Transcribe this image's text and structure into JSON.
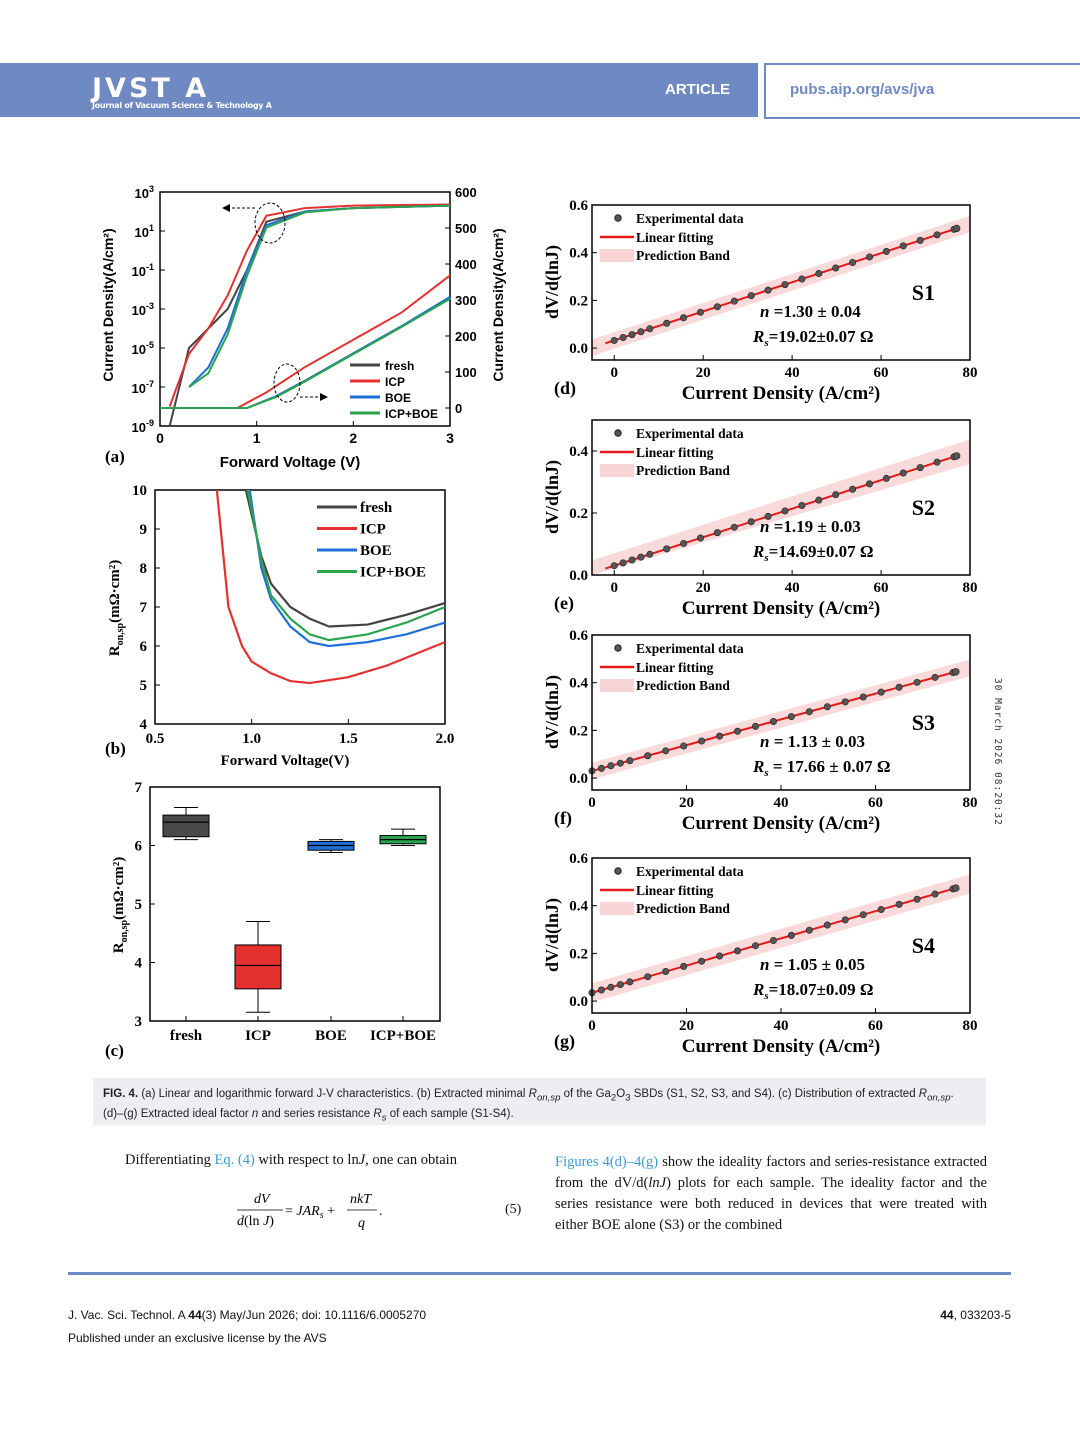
{
  "header": {
    "journal": "JVST A",
    "journal_sub": "Journal of Vacuum Science & Technology A",
    "section": "ARTICLE",
    "url": "pubs.aip.org/avs/jva"
  },
  "stamp": "30 March 2026 08:20:32",
  "panel_a": {
    "label": "(a)",
    "xlabel": "Forward Voltage (V)",
    "ylabel_left": "Current Density(A/cm²)",
    "ylabel_right": "Current Density(A/cm²)",
    "x_ticks": [
      "0",
      "1",
      "2",
      "3"
    ],
    "y_left_exp": [
      "3",
      "1",
      "-1",
      "-3",
      "-5",
      "-7",
      "-9"
    ],
    "y_right_ticks": [
      "600",
      "500",
      "400",
      "300",
      "200",
      "100",
      "0"
    ],
    "legend": [
      "fresh",
      "ICP",
      "BOE",
      "ICP+BOE"
    ]
  },
  "panel_b": {
    "label": "(b)",
    "xlabel": "Forward Voltage(V)",
    "ylabel": "R",
    "ylabel_sub": "on,sp",
    "ylabel_unit": "(mΩ·cm²)",
    "x_ticks": [
      "0.5",
      "1.0",
      "1.5",
      "2.0"
    ],
    "y_ticks": [
      "10",
      "9",
      "8",
      "7",
      "6",
      "5",
      "4"
    ],
    "legend": [
      "fresh",
      "ICP",
      "BOE",
      "ICP+BOE"
    ]
  },
  "panel_c": {
    "label": "(c)",
    "ylabel": "R",
    "ylabel_sub": "on,sp",
    "ylabel_unit": "(mΩ·cm²)",
    "categories": [
      "fresh",
      "ICP",
      "BOE",
      "ICP+BOE"
    ],
    "y_ticks": [
      "7",
      "6",
      "5",
      "4",
      "3"
    ]
  },
  "chart_data": [
    {
      "type": "line",
      "title": "(a) Linear and logarithmic forward J-V",
      "xlabel": "Forward Voltage (V)",
      "ylabel": "Current Density (A/cm2)",
      "xlim": [
        0,
        3
      ],
      "series": [
        {
          "name": "fresh",
          "color": "#444444",
          "x": [
            0.1,
            0.3,
            0.5,
            0.7,
            0.9,
            1.1,
            1.5,
            2.0,
            3.0
          ],
          "y_log": [
            1e-09,
            1e-05,
            0.0001,
            0.001,
            0.1,
            30,
            100,
            150,
            200
          ]
        },
        {
          "name": "ICP",
          "color": "#e53030",
          "x": [
            0.1,
            0.3,
            0.5,
            0.7,
            0.9,
            1.1,
            1.5,
            2.0,
            3.0
          ],
          "y_log": [
            1e-08,
            5e-06,
            0.0001,
            0.005,
            1,
            60,
            150,
            200,
            230
          ]
        },
        {
          "name": "BOE",
          "color": "#1f6fd8",
          "x": [
            0.3,
            0.5,
            0.7,
            0.9,
            1.1,
            1.5,
            2.0,
            3.0
          ],
          "y_log": [
            1e-07,
            1e-06,
            0.0001,
            0.1,
            20,
            100,
            150,
            200
          ]
        },
        {
          "name": "ICP+BOE",
          "color": "#2aa44e",
          "x": [
            0.3,
            0.5,
            0.7,
            0.9,
            1.1,
            1.5,
            2.0,
            3.0
          ],
          "y_log": [
            1e-07,
            5e-07,
            5e-05,
            0.05,
            15,
            90,
            150,
            200
          ]
        }
      ],
      "linear_curves": [
        {
          "name": "fresh",
          "x": [
            0.9,
            1.2,
            1.5,
            2.0,
            2.5,
            3.0
          ],
          "y": [
            0,
            30,
            70,
            140,
            210,
            280
          ]
        },
        {
          "name": "ICP",
          "x": [
            0.8,
            1.1,
            1.5,
            2.0,
            2.5,
            3.0
          ],
          "y": [
            0,
            40,
            105,
            175,
            245,
            340
          ]
        },
        {
          "name": "BOE",
          "x": [
            0.9,
            1.2,
            1.5,
            2.0,
            2.5,
            3.0
          ],
          "y": [
            0,
            30,
            70,
            140,
            210,
            285
          ]
        },
        {
          "name": "ICP+BOE",
          "x": [
            0.9,
            1.2,
            1.5,
            2.0,
            2.5,
            3.0
          ],
          "y": [
            0,
            28,
            68,
            138,
            208,
            280
          ]
        }
      ]
    },
    {
      "type": "line",
      "title": "(b) Extracted minimal Ron,sp",
      "xlabel": "Forward Voltage(V)",
      "ylabel": "Ron,sp (mΩ·cm2)",
      "xlim": [
        0.5,
        2.0
      ],
      "ylim": [
        4,
        10
      ],
      "series": [
        {
          "name": "fresh",
          "color": "#444444",
          "x": [
            0.97,
            1.05,
            1.1,
            1.2,
            1.3,
            1.4,
            1.6,
            1.8,
            2.0
          ],
          "y": [
            10,
            8.3,
            7.6,
            7.0,
            6.7,
            6.5,
            6.55,
            6.8,
            7.1
          ]
        },
        {
          "name": "ICP",
          "color": "#e53030",
          "x": [
            0.82,
            0.88,
            0.95,
            1.0,
            1.1,
            1.2,
            1.3,
            1.5,
            1.7,
            1.9,
            2.0
          ],
          "y": [
            10,
            7.0,
            6.0,
            5.6,
            5.3,
            5.1,
            5.05,
            5.2,
            5.5,
            5.9,
            6.1
          ]
        },
        {
          "name": "BOE",
          "color": "#1f6fd8",
          "x": [
            0.99,
            1.05,
            1.1,
            1.2,
            1.3,
            1.4,
            1.6,
            1.8,
            2.0
          ],
          "y": [
            10,
            8.0,
            7.2,
            6.5,
            6.1,
            6.0,
            6.1,
            6.3,
            6.6
          ]
        },
        {
          "name": "ICP+BOE",
          "color": "#2aa44e",
          "x": [
            0.98,
            1.05,
            1.1,
            1.2,
            1.3,
            1.4,
            1.6,
            1.8,
            2.0
          ],
          "y": [
            10,
            8.2,
            7.3,
            6.7,
            6.3,
            6.15,
            6.3,
            6.6,
            7.0
          ]
        }
      ]
    },
    {
      "type": "box",
      "title": "(c) Distribution of extracted Ron,sp",
      "ylabel": "Ron,sp (mΩ·cm2)",
      "ylim": [
        3,
        7
      ],
      "categories": [
        "fresh",
        "ICP",
        "BOE",
        "ICP+BOE"
      ],
      "boxes": [
        {
          "name": "fresh",
          "color": "#4a4a4a",
          "min": 6.1,
          "q1": 6.15,
          "median": 6.4,
          "q3": 6.52,
          "max": 6.65
        },
        {
          "name": "ICP",
          "color": "#e53030",
          "min": 3.15,
          "q1": 3.55,
          "median": 3.95,
          "q3": 4.3,
          "max": 4.7
        },
        {
          "name": "BOE",
          "color": "#1f6fd8",
          "min": 5.88,
          "q1": 5.92,
          "median": 6.0,
          "q3": 6.07,
          "max": 6.1
        },
        {
          "name": "ICP+BOE",
          "color": "#2aa44e",
          "min": 6.0,
          "q1": 6.03,
          "median": 6.1,
          "q3": 6.17,
          "max": 6.28
        }
      ]
    },
    {
      "type": "scatter",
      "title": "(d) S1",
      "panel": "(d)",
      "sample": "S1",
      "xlabel": "Current Density (A/cm²)",
      "ylabel": "dV/d(lnJ)",
      "xlim": [
        -5,
        80
      ],
      "ylim": [
        -0.05,
        0.6
      ],
      "x_ticks": [
        "0",
        "20",
        "40",
        "60",
        "80"
      ],
      "y_ticks": [
        "0.6",
        "0.4",
        "0.2",
        "0.0"
      ],
      "legend": [
        "Experimental data",
        "Linear fitting",
        "Prediction Band"
      ],
      "n_text": "n =1.30 ± 0.04",
      "rs_text": "=19.02±0.07 Ω",
      "slope": 0.0061,
      "intercept": 0.032,
      "xmax": 77,
      "band": 0.035
    },
    {
      "type": "scatter",
      "title": "(e) S2",
      "panel": "(e)",
      "sample": "S2",
      "xlabel": "Current Density (A/cm²)",
      "ylabel": "dV/d(lnJ)",
      "xlim": [
        -5,
        80
      ],
      "ylim": [
        0,
        0.5
      ],
      "x_ticks": [
        "0",
        "20",
        "40",
        "60",
        "80"
      ],
      "y_ticks": [
        "0.4",
        "0.2",
        "0.0"
      ],
      "legend": [
        "Experimental data",
        "Linear fitting",
        "Prediction Band"
      ],
      "n_text": "n =1.19 ± 0.03",
      "rs_text": "=14.69±0.07 Ω",
      "slope": 0.0046,
      "intercept": 0.03,
      "xmax": 77,
      "band": 0.04
    },
    {
      "type": "scatter",
      "title": "(f) S3",
      "panel": "(f)",
      "sample": "S3",
      "xlabel": "Current Density (A/cm²)",
      "ylabel": "dV/d(lnJ)",
      "xlim": [
        0,
        80
      ],
      "ylim": [
        -0.05,
        0.6
      ],
      "x_ticks": [
        "0",
        "20",
        "40",
        "60",
        "80"
      ],
      "y_ticks": [
        "0.6",
        "0.4",
        "0.2",
        "0.0"
      ],
      "legend": [
        "Experimental data",
        "Linear fitting",
        "Prediction Band"
      ],
      "n_text": "n = 1.13 ± 0.03",
      "rs_text": " = 17.66 ± 0.07 Ω",
      "slope": 0.0054,
      "intercept": 0.03,
      "xmax": 77,
      "band": 0.035
    },
    {
      "type": "scatter",
      "title": "(g) S4",
      "panel": "(g)",
      "sample": "S4",
      "xlabel": "Current Density (A/cm²)",
      "ylabel": "dV/d(lnJ)",
      "xlim": [
        0,
        80
      ],
      "ylim": [
        -0.05,
        0.6
      ],
      "x_ticks": [
        "0",
        "20",
        "40",
        "60",
        "80"
      ],
      "y_ticks": [
        "0.6",
        "0.4",
        "0.2",
        "0.0"
      ],
      "legend": [
        "Experimental data",
        "Linear fitting",
        "Prediction Band"
      ],
      "n_text": "n = 1.05 ± 0.05",
      "rs_text": "=18.07±0.09 Ω",
      "slope": 0.0057,
      "intercept": 0.035,
      "xmax": 77,
      "band": 0.04
    }
  ],
  "caption": {
    "fig": "FIG. 4.",
    "text1": " (a) Linear and logarithmic forward J-V characteristics. (b) Extracted minimal ",
    "r1": "R",
    "r1sub": "on,sp",
    "text2": " of the Ga",
    "ga_sub1": "2",
    "text3": "O",
    "o_sub": "3",
    "text4": " SBDs (S1, S2, S3, and S4). (c) Distribution of extracted ",
    "r2": "R",
    "r2sub": "on,sp",
    "text5": ". (d)–(g) Extracted ideal factor ",
    "n": "n",
    "text6": " and series resistance ",
    "rs": "R",
    "rs_sub": "s",
    "text7": " of each sample (S1-S4)."
  },
  "body": {
    "left_p1": "Differentiating ",
    "left_link": "Eq. (4)",
    "left_p2": " with respect to ln",
    "left_j": "J",
    "left_p3": ", one can obtain",
    "eq_number": "(5)",
    "right_link": "Figures 4(d)–4(g)",
    "right_text1": " show the ideality factors and series-resistance extracted from the dV/d(",
    "right_lnj": "lnJ",
    "right_text2": ") plots for each sample. The ideality factor and the series resistance were both reduced in devices that were treated with either BOE alone (S3) or the combined"
  },
  "footer": {
    "citation_pre": "J. Vac. Sci. Technol. A ",
    "citation_vol": "44",
    "citation_post": "(3) May/Jun 2026; doi: 10.1116/6.0005270",
    "license": "Published under an exclusive license by the AVS",
    "page_vol": "44",
    "page_num": ", 033203-5"
  }
}
